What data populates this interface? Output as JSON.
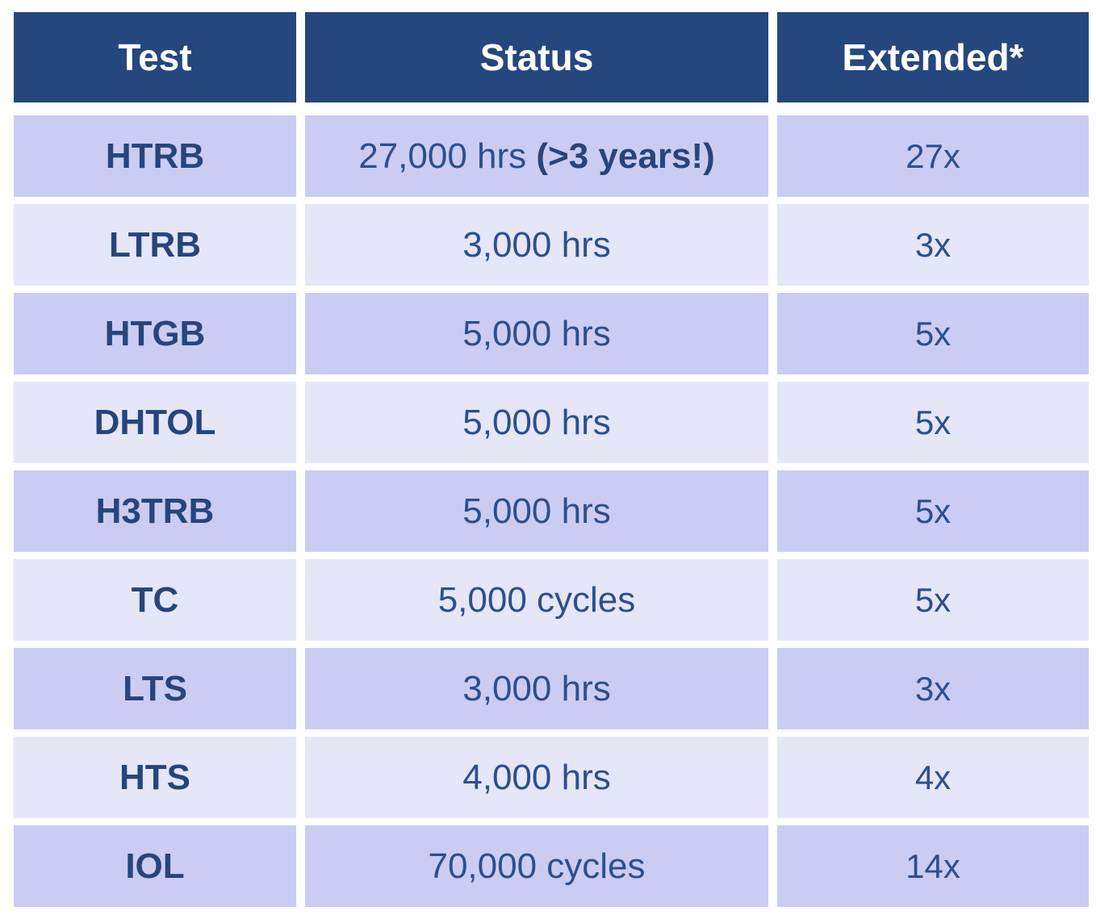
{
  "colors": {
    "header_bg": "#25477E",
    "header_text": "#FFFFFF",
    "row_dark_bg": "#CBCCF3",
    "row_light_bg": "#E5E6F8",
    "test_text": "#27457B",
    "value_text": "#2D4F8C",
    "gutter": "#FFFFFF"
  },
  "table": {
    "headers": {
      "test": "Test",
      "status": "Status",
      "extended": "Extended*"
    },
    "rows": [
      {
        "test": "HTRB",
        "status": "27,000 hrs ",
        "status_bold": "(>3 years!)",
        "extended": "27x"
      },
      {
        "test": "LTRB",
        "status": "3,000 hrs",
        "extended": "3x"
      },
      {
        "test": "HTGB",
        "status": "5,000 hrs",
        "extended": "5x"
      },
      {
        "test": "DHTOL",
        "status": "5,000 hrs",
        "extended": "5x"
      },
      {
        "test": "H3TRB",
        "status": "5,000 hrs",
        "extended": "5x"
      },
      {
        "test": "TC",
        "status": "5,000 cycles",
        "extended": "5x"
      },
      {
        "test": "LTS",
        "status": "3,000 hrs",
        "extended": "3x"
      },
      {
        "test": "HTS",
        "status": "4,000 hrs",
        "extended": "4x"
      },
      {
        "test": "IOL",
        "status": "70,000 cycles",
        "extended": "14x"
      }
    ]
  }
}
